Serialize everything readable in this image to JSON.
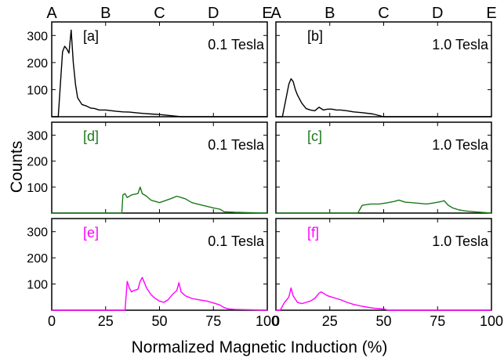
{
  "figure": {
    "ylabel": "Counts",
    "xlabel": "Normalized Magnetic Induction (%)",
    "top_letters": [
      "A",
      "B",
      "C",
      "D",
      "E"
    ],
    "xticks": [
      "0",
      "25",
      "50",
      "75",
      "100"
    ],
    "yticks": [
      "100",
      "200",
      "300"
    ]
  },
  "chart_data": [
    {
      "type": "line",
      "panel": "[a]",
      "field": "0.1 Tesla",
      "color": "#000000",
      "xlim": [
        0,
        100
      ],
      "ylim": [
        0,
        350
      ],
      "series": [
        {
          "x": [
            0,
            3,
            5,
            6,
            7,
            8,
            9,
            10,
            11,
            12,
            14,
            16,
            18,
            20,
            22,
            25,
            28,
            30,
            33,
            36,
            40,
            43,
            46,
            50,
            55,
            60,
            100
          ],
          "y": [
            0,
            0,
            240,
            260,
            250,
            235,
            320,
            200,
            120,
            70,
            45,
            40,
            32,
            30,
            25,
            25,
            22,
            20,
            18,
            17,
            14,
            12,
            10,
            8,
            4,
            0,
            0
          ]
        }
      ]
    },
    {
      "type": "line",
      "panel": "[b]",
      "field": "1.0 Tesla",
      "color": "#000000",
      "xlim": [
        0,
        100
      ],
      "ylim": [
        0,
        350
      ],
      "series": [
        {
          "x": [
            0,
            3,
            5,
            6,
            7,
            8,
            9,
            10,
            12,
            14,
            16,
            18,
            20,
            22,
            24,
            26,
            28,
            30,
            33,
            36,
            40,
            45,
            50,
            100
          ],
          "y": [
            0,
            0,
            80,
            120,
            140,
            130,
            100,
            80,
            50,
            30,
            25,
            22,
            35,
            25,
            28,
            28,
            25,
            25,
            22,
            18,
            15,
            10,
            0,
            0
          ]
        }
      ]
    },
    {
      "type": "line",
      "panel": "[d]",
      "field": "0.1 Tesla",
      "color": "#1a7a1a",
      "xlim": [
        0,
        100
      ],
      "ylim": [
        0,
        350
      ],
      "series": [
        {
          "x": [
            0,
            32.5,
            33,
            34,
            35,
            37,
            40,
            41,
            42,
            44,
            46,
            50,
            55,
            58,
            60,
            62,
            65,
            70,
            75,
            78,
            80,
            85,
            90,
            95,
            100
          ],
          "y": [
            0,
            0,
            70,
            75,
            60,
            70,
            75,
            100,
            75,
            65,
            50,
            40,
            55,
            65,
            60,
            55,
            40,
            30,
            20,
            15,
            5,
            3,
            2,
            1,
            0
          ]
        }
      ]
    },
    {
      "type": "line",
      "panel": "[c]",
      "field": "1.0 Tesla",
      "color": "#1a7a1a",
      "xlim": [
        0,
        100
      ],
      "ylim": [
        0,
        350
      ],
      "series": [
        {
          "x": [
            0,
            38,
            40,
            44,
            48,
            52,
            55,
            57,
            60,
            63,
            66,
            70,
            74,
            77,
            78,
            80,
            82,
            85,
            88,
            92,
            100
          ],
          "y": [
            0,
            0,
            30,
            35,
            35,
            40,
            45,
            50,
            42,
            40,
            38,
            35,
            40,
            45,
            48,
            30,
            20,
            12,
            8,
            5,
            0
          ]
        }
      ]
    },
    {
      "type": "line",
      "panel": "[e]",
      "field": "0.1 Tesla",
      "color": "#ff00ff",
      "xlim": [
        0,
        100
      ],
      "ylim": [
        0,
        350
      ],
      "series": [
        {
          "x": [
            0,
            34,
            35,
            36,
            37,
            38,
            40,
            41,
            42,
            44,
            46,
            48,
            50,
            52,
            54,
            56,
            58,
            59,
            60,
            62,
            65,
            68,
            72,
            76,
            78,
            80,
            82,
            85,
            90,
            100
          ],
          "y": [
            0,
            0,
            110,
            85,
            70,
            75,
            80,
            110,
            125,
            85,
            60,
            45,
            35,
            30,
            40,
            60,
            75,
            105,
            70,
            55,
            45,
            40,
            35,
            25,
            20,
            10,
            5,
            3,
            2,
            0
          ]
        }
      ]
    },
    {
      "type": "line",
      "panel": "[f]",
      "field": "1.0 Tesla",
      "color": "#ff00ff",
      "xlim": [
        0,
        100
      ],
      "ylim": [
        0,
        350
      ],
      "series": [
        {
          "x": [
            0,
            2,
            4,
            6,
            7,
            8,
            10,
            12,
            14,
            16,
            18,
            20,
            21,
            22,
            24,
            26,
            28,
            30,
            33,
            36,
            40,
            45,
            50,
            52,
            100
          ],
          "y": [
            0,
            0,
            30,
            50,
            85,
            55,
            30,
            25,
            30,
            35,
            45,
            65,
            70,
            65,
            55,
            50,
            45,
            40,
            30,
            22,
            15,
            8,
            5,
            0,
            0
          ]
        }
      ]
    }
  ]
}
